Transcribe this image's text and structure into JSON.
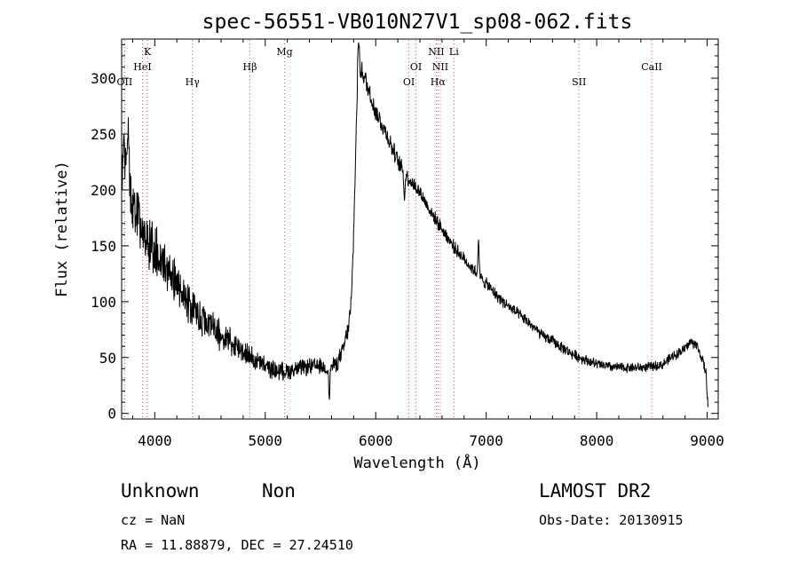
{
  "chart_data": {
    "type": "line",
    "title": "spec-56551-VB010N27V1_sp08-062.fits",
    "xlabel": "Wavelength (Å)",
    "ylabel": "Flux (relative)",
    "xlim": [
      3700,
      9100
    ],
    "ylim": [
      -5,
      335
    ],
    "xticks": [
      4000,
      5000,
      6000,
      7000,
      8000,
      9000
    ],
    "yticks": [
      0,
      50,
      100,
      150,
      200,
      250,
      300
    ],
    "grid": false,
    "line_color": "#000000",
    "marker_color": "#d05050",
    "lines": [
      {
        "label": "OII",
        "wave": 3727,
        "row": 3
      },
      {
        "label": "K",
        "wave": 3934,
        "row": 1
      },
      {
        "label": "HeI",
        "wave": 3889,
        "row": 2
      },
      {
        "label": "Hγ",
        "wave": 4341,
        "row": 3
      },
      {
        "label": "Hβ",
        "wave": 4861,
        "row": 2
      },
      {
        "label": "Mg",
        "wave": 5175,
        "row": 1
      },
      {
        "label": "OI",
        "wave": 6300,
        "row": 3
      },
      {
        "label": "OI",
        "wave": 6364,
        "row": 2
      },
      {
        "label": "NII",
        "wave": 6548,
        "row": 1
      },
      {
        "label": "NII",
        "wave": 6584,
        "row": 2
      },
      {
        "label": "Hα",
        "wave": 6563,
        "row": 3
      },
      {
        "label": "Li",
        "wave": 6708,
        "row": 1
      },
      {
        "label": "SII",
        "wave": 7840,
        "row": 3
      },
      {
        "label": "CaII",
        "wave": 8498,
        "row": 2
      }
    ],
    "continuum": [
      [
        3700,
        210
      ],
      [
        3750,
        210
      ],
      [
        3800,
        190
      ],
      [
        3850,
        172
      ],
      [
        3900,
        160
      ],
      [
        3950,
        155
      ],
      [
        4000,
        145
      ],
      [
        4100,
        130
      ],
      [
        4200,
        115
      ],
      [
        4300,
        100
      ],
      [
        4400,
        88
      ],
      [
        4500,
        78
      ],
      [
        4600,
        70
      ],
      [
        4700,
        63
      ],
      [
        4800,
        56
      ],
      [
        4900,
        48
      ],
      [
        5000,
        42
      ],
      [
        5100,
        38
      ],
      [
        5200,
        38
      ],
      [
        5300,
        40
      ],
      [
        5400,
        42
      ],
      [
        5500,
        42
      ],
      [
        5550,
        40
      ],
      [
        5600,
        42
      ],
      [
        5650,
        45
      ],
      [
        5700,
        55
      ],
      [
        5750,
        75
      ],
      [
        5780,
        100
      ],
      [
        5800,
        160
      ],
      [
        5820,
        240
      ],
      [
        5840,
        320
      ],
      [
        5860,
        310
      ],
      [
        5900,
        300
      ],
      [
        5950,
        285
      ],
      [
        6000,
        270
      ],
      [
        6100,
        250
      ],
      [
        6200,
        225
      ],
      [
        6300,
        210
      ],
      [
        6400,
        198
      ],
      [
        6500,
        180
      ],
      [
        6600,
        165
      ],
      [
        6700,
        150
      ],
      [
        6800,
        138
      ],
      [
        6900,
        127
      ],
      [
        7000,
        116
      ],
      [
        7100,
        105
      ],
      [
        7200,
        96
      ],
      [
        7300,
        88
      ],
      [
        7400,
        80
      ],
      [
        7500,
        70
      ],
      [
        7600,
        65
      ],
      [
        7700,
        58
      ],
      [
        7800,
        52
      ],
      [
        7900,
        48
      ],
      [
        8000,
        44
      ],
      [
        8100,
        42
      ],
      [
        8200,
        41
      ],
      [
        8300,
        41
      ],
      [
        8400,
        41
      ],
      [
        8500,
        42
      ],
      [
        8600,
        44
      ],
      [
        8700,
        52
      ],
      [
        8800,
        58
      ],
      [
        8850,
        64
      ],
      [
        8900,
        62
      ],
      [
        8950,
        50
      ],
      [
        8990,
        35
      ],
      [
        9010,
        5
      ]
    ],
    "noise": [
      [
        3700,
        35
      ],
      [
        4000,
        28
      ],
      [
        4400,
        18
      ],
      [
        5000,
        10
      ],
      [
        5600,
        8
      ],
      [
        5850,
        12
      ],
      [
        6500,
        7
      ],
      [
        7500,
        6
      ],
      [
        8500,
        5
      ],
      [
        9000,
        6
      ]
    ],
    "features": [
      {
        "wave": 3720,
        "flux": 255
      },
      {
        "wave": 3760,
        "flux": 265
      },
      {
        "wave": 5580,
        "flux": 10
      },
      {
        "wave": 5845,
        "flux": 332
      },
      {
        "wave": 6260,
        "flux": 188
      },
      {
        "wave": 6930,
        "flux": 158
      }
    ]
  },
  "footer": {
    "object_class": "Unknown",
    "subclass": "Non",
    "cz": "cz = NaN",
    "coords": "RA =  11.88879, DEC =  27.24510",
    "survey": "LAMOST DR2",
    "obs_date": "Obs-Date: 20130915"
  }
}
